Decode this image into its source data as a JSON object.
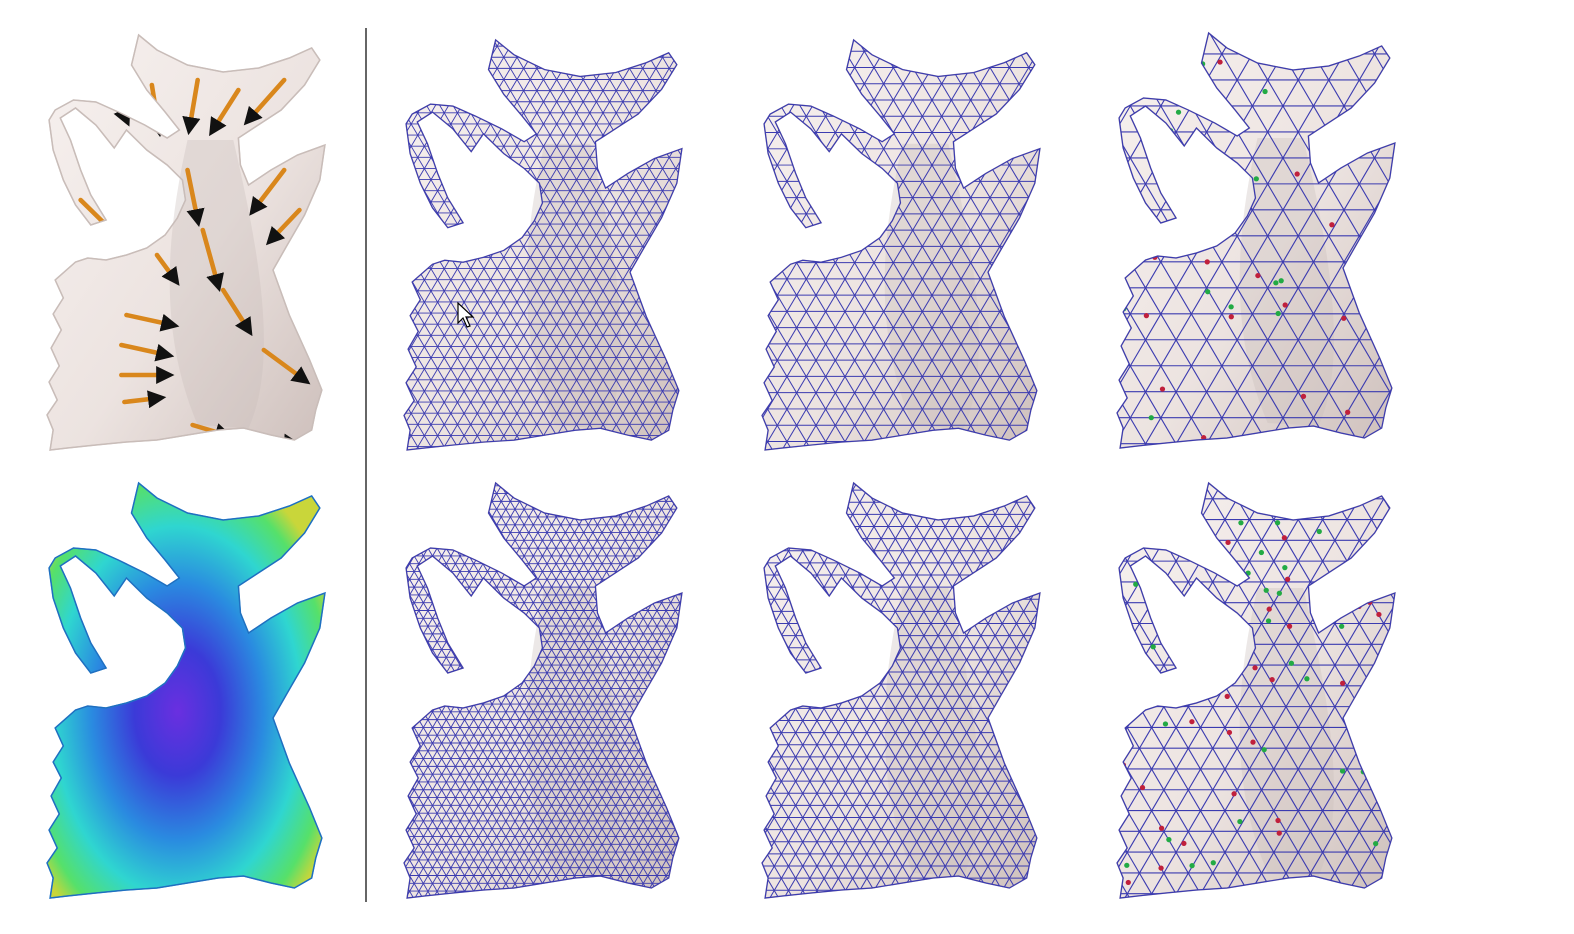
{
  "figure": {
    "layout": {
      "rows": 2,
      "columns": 4,
      "separator_after_column": 1
    },
    "panels": [
      {
        "id": "input-vector-field",
        "row": 1,
        "column": 1,
        "render": "shaded-mesh-with-orange-arrows"
      },
      {
        "id": "mesh-uniform-1",
        "row": 1,
        "column": 2,
        "render": "dense-triangle-wireframe"
      },
      {
        "id": "mesh-uniform-2",
        "row": 1,
        "column": 3,
        "render": "medium-triangle-wireframe"
      },
      {
        "id": "mesh-uniform-3",
        "row": 1,
        "column": 4,
        "render": "coarse-triangle-wireframe-with-singularities"
      },
      {
        "id": "input-density-field",
        "row": 2,
        "column": 1,
        "render": "colormap-green-cyan-blue-violet"
      },
      {
        "id": "mesh-adaptive-1",
        "row": 2,
        "column": 2,
        "render": "dense-triangle-wireframe"
      },
      {
        "id": "mesh-adaptive-2",
        "row": 2,
        "column": 3,
        "render": "medium-triangle-wireframe"
      },
      {
        "id": "mesh-adaptive-3",
        "row": 2,
        "column": 4,
        "render": "coarse-triangle-wireframe-with-singularities"
      }
    ],
    "colors": {
      "surface": "#efe6e3",
      "surface_shadow": "#c9bdb9",
      "wire": "#3b3bb0",
      "arrow": "#d9871c",
      "arrow_tip": "#111111",
      "singularity_green": "#22aa44",
      "singularity_red": "#c0203c",
      "separator": "#333333"
    },
    "icons": [
      "cursor-arrow-icon"
    ]
  }
}
